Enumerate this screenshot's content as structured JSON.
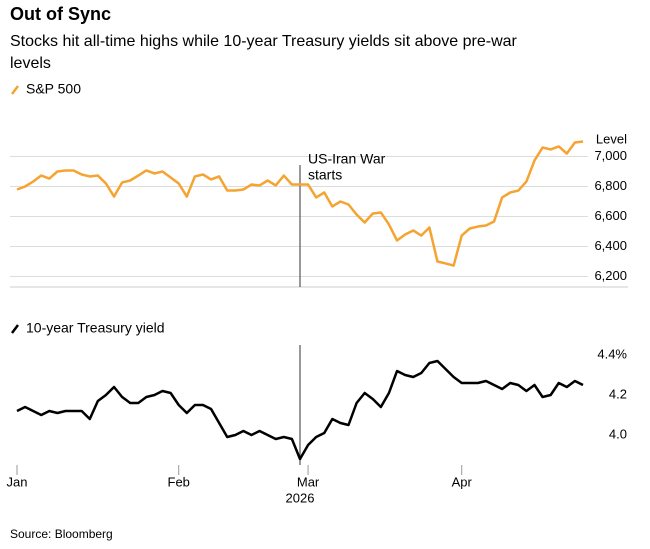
{
  "title": "Out of Sync",
  "subtitle": "Stocks hit all-time highs while 10-year Treasury yields sit above pre-war levels",
  "source": "Source: Bloomberg",
  "chart_data": [
    {
      "type": "line",
      "ylabel": "Level",
      "annotation": [
        "US-Iran War",
        "starts"
      ],
      "grid": true,
      "ylim": [
        6130,
        7310
      ],
      "yticks": [
        {
          "value": 7000,
          "label": "7,000"
        },
        {
          "value": 6800,
          "label": "6,800"
        },
        {
          "value": 6600,
          "label": "6,600"
        },
        {
          "value": 6400,
          "label": "6,400"
        },
        {
          "value": 6200,
          "label": "6,200"
        }
      ],
      "series": [
        {
          "name": "S&P 500",
          "color": "#f5a331",
          "values": [
            6780,
            6800,
            6833,
            6873,
            6853,
            6900,
            6907,
            6907,
            6880,
            6867,
            6873,
            6820,
            6733,
            6827,
            6840,
            6873,
            6907,
            6887,
            6900,
            6860,
            6820,
            6733,
            6867,
            6880,
            6847,
            6867,
            6773,
            6773,
            6780,
            6813,
            6807,
            6840,
            6807,
            6873,
            6813,
            6813,
            6813,
            6727,
            6760,
            6667,
            6700,
            6680,
            6613,
            6560,
            6620,
            6627,
            6547,
            6440,
            6480,
            6507,
            6473,
            6527,
            6300,
            6287,
            6273,
            6473,
            6520,
            6533,
            6540,
            6567,
            6727,
            6760,
            6773,
            6833,
            6973,
            7060,
            7047,
            7067,
            7020,
            7093,
            7100
          ]
        }
      ]
    },
    {
      "type": "line",
      "grid": false,
      "xlabel": "2026",
      "categories": [
        "Jan",
        null,
        null,
        null,
        null,
        null,
        null,
        null,
        null,
        null,
        null,
        null,
        null,
        null,
        null,
        null,
        null,
        null,
        null,
        null,
        "Feb",
        null,
        null,
        null,
        null,
        null,
        null,
        null,
        null,
        null,
        null,
        null,
        null,
        null,
        null,
        null,
        "Mar",
        null,
        null,
        null,
        null,
        null,
        null,
        null,
        null,
        null,
        null,
        null,
        null,
        null,
        null,
        null,
        null,
        null,
        null,
        "Apr",
        null,
        null,
        null,
        null,
        null,
        null,
        null,
        null,
        null,
        null,
        null,
        null,
        null,
        null,
        null
      ],
      "ylim": [
        3.85,
        4.45
      ],
      "yticks": [
        {
          "value": 4.4,
          "label": "4.4%"
        },
        4.2,
        {
          "value": 4,
          "label": "4.0"
        }
      ],
      "series": [
        {
          "name": "10-year Treasury yield",
          "color": "#000000",
          "values": [
            4.12,
            4.14,
            4.12,
            4.1,
            4.12,
            4.11,
            4.12,
            4.12,
            4.12,
            4.08,
            4.17,
            4.2,
            4.24,
            4.19,
            4.16,
            4.16,
            4.19,
            4.2,
            4.22,
            4.21,
            4.15,
            4.11,
            4.15,
            4.15,
            4.13,
            4.06,
            3.99,
            4.0,
            4.02,
            4.0,
            4.02,
            4.0,
            3.98,
            3.99,
            3.98,
            3.88,
            3.95,
            3.99,
            4.01,
            4.08,
            4.06,
            4.05,
            4.16,
            4.21,
            4.18,
            4.14,
            4.21,
            4.32,
            4.3,
            4.29,
            4.31,
            4.36,
            4.37,
            4.33,
            4.29,
            4.26,
            4.26,
            4.26,
            4.27,
            4.25,
            4.23,
            4.26,
            4.25,
            4.22,
            4.25,
            4.19,
            4.2,
            4.26,
            4.24,
            4.27,
            4.25
          ]
        }
      ]
    }
  ]
}
